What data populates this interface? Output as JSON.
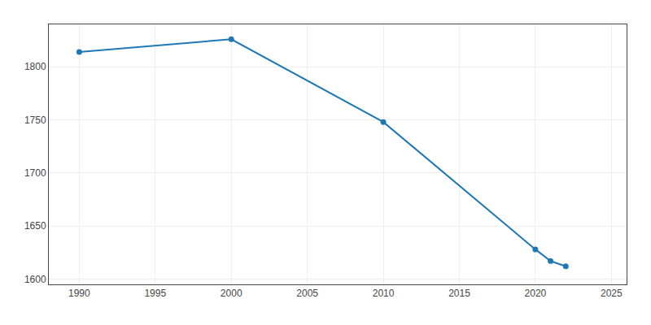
{
  "chart_data": {
    "type": "line",
    "x": [
      1990,
      2000,
      2010,
      2020,
      2021,
      2022
    ],
    "values": [
      1814,
      1826,
      1748,
      1628,
      1617,
      1612
    ],
    "marker": "circle",
    "xlim": [
      1988,
      2026
    ],
    "ylim": [
      1595,
      1840
    ],
    "xticks": [
      1990,
      1995,
      2000,
      2005,
      2010,
      2015,
      2020,
      2025
    ],
    "yticks": [
      1600,
      1650,
      1700,
      1750,
      1800
    ],
    "grid": true
  }
}
